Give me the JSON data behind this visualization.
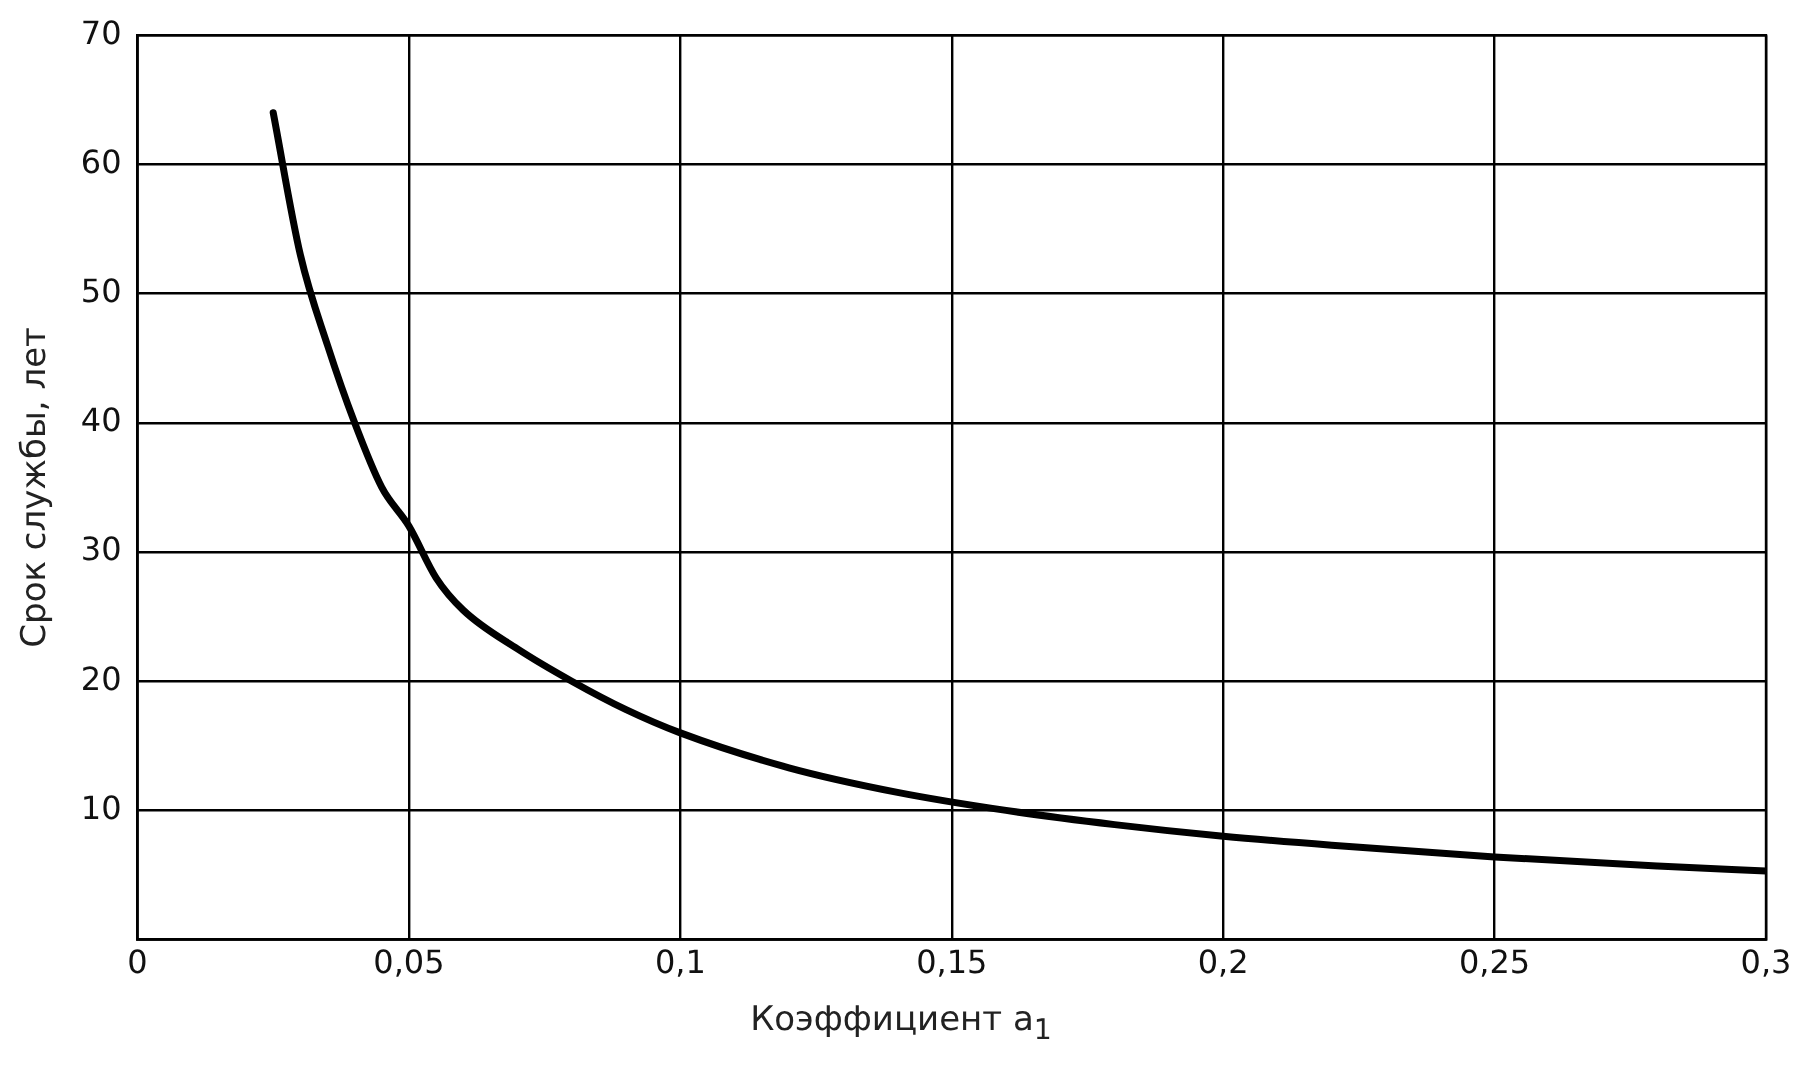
{
  "chart_data": {
    "type": "line",
    "xlabel": "Коэффициент a$_{1}$",
    "ylabel": "Срок службы, лет",
    "x": [
      0.025,
      0.03,
      0.035,
      0.04,
      0.045,
      0.05,
      0.055,
      0.06,
      0.07,
      0.08,
      0.09,
      0.1,
      0.12,
      0.14,
      0.16,
      0.18,
      0.2,
      0.22,
      0.25,
      0.28,
      0.3
    ],
    "series": [
      {
        "color": "#000000",
        "values": [
          64,
          53,
          46,
          40,
          35,
          32,
          28,
          25.5,
          22.5,
          20,
          17.8,
          16,
          13.3,
          11.4,
          10,
          8.9,
          8,
          7.3,
          6.4,
          5.7,
          5.3
        ]
      }
    ],
    "xlim": [
      0,
      0.3
    ],
    "xticks": [
      0,
      {
        "value": 0.05,
        "label": "0,05"
      },
      {
        "value": 0.1,
        "label": "0,1"
      },
      {
        "value": 0.15,
        "label": "0,15"
      },
      {
        "value": 0.2,
        "label": "0,2"
      },
      {
        "value": 0.25,
        "label": "0,25"
      },
      {
        "value": 0.3,
        "label": "0,3"
      }
    ],
    "ylim": [
      0,
      70
    ],
    "yticks": [
      {
        "value": 0,
        "label": null
      },
      10,
      20,
      30,
      40,
      50,
      60,
      70
    ],
    "grid": true,
    "legend": false,
    "marker": "none",
    "line_style": "solid"
  }
}
